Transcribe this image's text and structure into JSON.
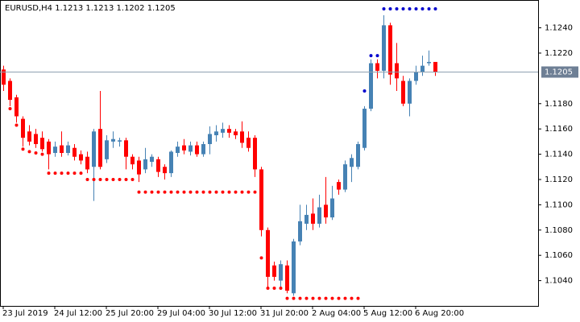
{
  "chart_data": {
    "type": "candlestick",
    "title": "EURUSD,H4  1.1213 1.1213 1.1202 1.1205",
    "categories": [
      "23 Jul 2019",
      null,
      null,
      null,
      null,
      null,
      null,
      null,
      "24 Jul 12:00",
      null,
      null,
      null,
      null,
      null,
      null,
      null,
      "25 Jul 20:00",
      null,
      null,
      null,
      null,
      null,
      null,
      null,
      "29 Jul 04:00",
      null,
      null,
      null,
      null,
      null,
      null,
      null,
      "30 Jul 12:00",
      null,
      null,
      null,
      null,
      null,
      null,
      null,
      "31 Jul 20:00",
      null,
      null,
      null,
      null,
      null,
      null,
      null,
      "2 Aug 04:00",
      null,
      null,
      null,
      null,
      null,
      null,
      null,
      "5 Aug 12:00",
      null,
      null,
      null,
      null,
      null,
      null,
      null,
      "6 Aug 20:00",
      null,
      null,
      null
    ],
    "open": [
      1.1207,
      1.1198,
      1.1185,
      1.1168,
      1.1158,
      1.1156,
      1.1153,
      1.115,
      1.1141,
      1.1147,
      1.1141,
      1.1145,
      1.114,
      1.1138,
      1.113,
      1.116,
      1.1136,
      1.115,
      1.115,
      1.1151,
      1.1138,
      1.1135,
      1.1128,
      1.1134,
      1.1136,
      1.113,
      1.1125,
      1.1141,
      1.1147,
      1.1142,
      1.1147,
      1.114,
      1.1148,
      1.1155,
      1.1157,
      1.116,
      1.1158,
      1.1158,
      1.1153,
      1.1153,
      1.1128,
      1.108,
      1.1052,
      1.104,
      1.1052,
      1.103,
      1.1071,
      1.1085,
      1.1093,
      1.1085,
      1.11,
      1.109,
      1.1118,
      1.1112,
      1.113,
      1.113,
      1.1145,
      1.1176,
      1.1212,
      1.1206,
      1.1242,
      1.1212,
      1.1198,
      1.118,
      1.1198,
      1.1205,
      1.1212,
      1.1213
    ],
    "high": [
      1.121,
      1.12,
      1.1187,
      1.117,
      1.1163,
      1.116,
      1.1158,
      1.1152,
      1.115,
      1.1158,
      1.115,
      1.1148,
      1.1143,
      1.1142,
      1.116,
      1.119,
      1.1155,
      1.1158,
      1.1153,
      1.1153,
      1.114,
      1.1138,
      1.1145,
      1.114,
      1.1138,
      1.1132,
      1.1143,
      1.115,
      1.1152,
      1.115,
      1.115,
      1.115,
      1.1162,
      1.1163,
      1.1165,
      1.1163,
      1.116,
      1.1166,
      1.1158,
      1.1155,
      1.113,
      1.1082,
      1.1055,
      1.1056,
      1.1056,
      1.1073,
      1.11,
      1.11,
      1.1105,
      1.1108,
      1.1122,
      1.1115,
      1.112,
      1.1135,
      1.114,
      1.115,
      1.1178,
      1.1215,
      1.1215,
      1.125,
      1.1244,
      1.1228,
      1.1202,
      1.12,
      1.121,
      1.1218,
      1.1222,
      1.1213
    ],
    "low": [
      1.119,
      1.1178,
      1.1165,
      1.1146,
      1.1147,
      1.1145,
      1.1142,
      1.1128,
      1.1138,
      1.1138,
      1.1139,
      1.1135,
      1.1132,
      1.1125,
      1.1103,
      1.1128,
      1.1133,
      1.1145,
      1.1146,
      1.1128,
      1.1128,
      1.1118,
      1.1125,
      1.113,
      1.1122,
      1.112,
      1.1122,
      1.1138,
      1.114,
      1.1139,
      1.1138,
      1.1138,
      1.114,
      1.115,
      1.1153,
      1.1153,
      1.1152,
      1.1145,
      1.1142,
      1.1122,
      1.1075,
      1.1035,
      1.104,
      1.1035,
      1.103,
      1.1028,
      1.1068,
      1.108,
      1.108,
      1.1082,
      1.1085,
      1.1088,
      1.1108,
      1.111,
      1.1118,
      1.1128,
      1.1143,
      1.1174,
      1.12,
      1.12,
      1.1195,
      1.119,
      1.1178,
      1.117,
      1.1195,
      1.1202,
      1.121,
      1.1202
    ],
    "close": [
      1.1195,
      1.1183,
      1.117,
      1.1153,
      1.115,
      1.1148,
      1.1144,
      1.114,
      1.1146,
      1.1141,
      1.1147,
      1.1138,
      1.1135,
      1.1128,
      1.1158,
      1.113,
      1.1151,
      1.1152,
      1.1151,
      1.1138,
      1.1132,
      1.1124,
      1.1136,
      1.1138,
      1.1126,
      1.1125,
      1.1142,
      1.1146,
      1.1143,
      1.1147,
      1.114,
      1.1148,
      1.1156,
      1.1158,
      1.116,
      1.1157,
      1.1155,
      1.1149,
      1.1145,
      1.1128,
      1.108,
      1.1043,
      1.1043,
      1.1053,
      1.1032,
      1.1071,
      1.1087,
      1.1092,
      1.1085,
      1.1098,
      1.109,
      1.1105,
      1.1112,
      1.1132,
      1.1137,
      1.1148,
      1.1176,
      1.1212,
      1.1206,
      1.1242,
      1.1203,
      1.12,
      1.118,
      1.1198,
      1.1205,
      1.121,
      1.1213,
      1.1205
    ],
    "up_color": "#4682b4",
    "down_color": "#ff0000",
    "dots": [
      {
        "color": "#ff0000",
        "values": [
          null,
          1.1176,
          1.1163,
          1.1144,
          1.1142,
          1.1141,
          1.114,
          1.1125,
          1.1125,
          1.1125,
          1.1125,
          1.1125,
          1.1125,
          1.112,
          1.112,
          1.112,
          1.112,
          1.112,
          1.112,
          1.112,
          1.112,
          1.111,
          1.111,
          1.111,
          1.111,
          1.111,
          1.111,
          1.111,
          1.111,
          1.111,
          1.111,
          1.111,
          1.111,
          1.111,
          1.111,
          1.111,
          1.111,
          1.111,
          1.111,
          1.111,
          1.1058,
          1.1034,
          1.1034,
          1.1034,
          1.1026,
          1.1026,
          1.1026,
          1.1026,
          1.1026,
          1.1026,
          1.1026,
          1.1026,
          1.1026,
          1.1026,
          1.1026,
          1.1026,
          null,
          null,
          null,
          null,
          null,
          null,
          null,
          null,
          null,
          null,
          null,
          null
        ]
      },
      {
        "color": "#0000cd",
        "values": [
          null,
          null,
          null,
          null,
          null,
          null,
          null,
          null,
          null,
          null,
          null,
          null,
          null,
          null,
          null,
          null,
          null,
          null,
          null,
          null,
          null,
          null,
          null,
          null,
          null,
          null,
          null,
          null,
          null,
          null,
          null,
          null,
          null,
          null,
          null,
          null,
          null,
          null,
          null,
          null,
          null,
          null,
          null,
          null,
          null,
          null,
          null,
          null,
          null,
          null,
          null,
          null,
          null,
          null,
          null,
          null,
          1.119,
          1.1218,
          1.1218,
          1.1255,
          1.1255,
          1.1255,
          1.1255,
          1.1255,
          1.1255,
          1.1255,
          1.1255,
          1.1255
        ]
      }
    ],
    "last_price": 1.1205,
    "last_price_color": "#6e7f95",
    "ylim": [
      1.102,
      1.1262
    ],
    "yticks": [
      {
        "value": 1.104,
        "label": "1.1040"
      },
      {
        "value": 1.106,
        "label": "1.1060"
      },
      {
        "value": 1.108,
        "label": "1.1080"
      },
      {
        "value": 1.11,
        "label": "1.1100"
      },
      {
        "value": 1.112,
        "label": "1.1120"
      },
      {
        "value": 1.114,
        "label": "1.1140"
      },
      {
        "value": 1.116,
        "label": "1.1160"
      },
      {
        "value": 1.118,
        "label": "1.1180"
      },
      {
        "value": 1.122,
        "label": "1.1220"
      },
      {
        "value": 1.124,
        "label": "1.1240"
      }
    ]
  }
}
